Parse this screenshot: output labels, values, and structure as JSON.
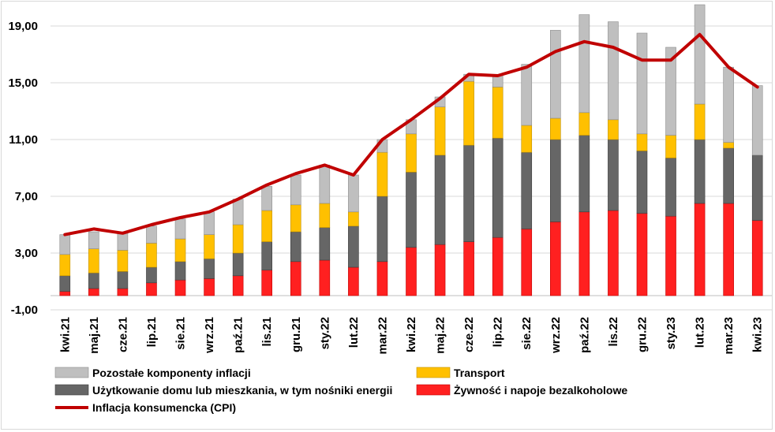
{
  "chart_data": {
    "type": "bar",
    "stacked": true,
    "ylim": [
      -1,
      19
    ],
    "yticks": [
      "-1,00",
      "3,00",
      "7,00",
      "11,00",
      "15,00",
      "19,00"
    ],
    "ytick_values": [
      -1,
      3,
      7,
      11,
      15,
      19
    ],
    "gridlines": true,
    "legend_position": "bottom",
    "categories": [
      "kwi.21",
      "maj.21",
      "cze.21",
      "lip.21",
      "sie.21",
      "wrz.21",
      "paź.21",
      "lis.21",
      "gru.21",
      "sty.22",
      "lut.22",
      "mar.22",
      "kwi.22",
      "maj.22",
      "cze.22",
      "lip.22",
      "sie.22",
      "wrz.22",
      "paź.22",
      "lis.22",
      "gru.22",
      "sty.23",
      "lut.23",
      "mar.23",
      "kwi.23"
    ],
    "series": [
      {
        "name": "Żywność i napoje bezalkoholowe",
        "color": "#ff2020",
        "border": "#c00000",
        "values": [
          0.3,
          0.5,
          0.5,
          0.9,
          1.1,
          1.2,
          1.4,
          1.8,
          2.4,
          2.5,
          2.0,
          2.4,
          3.4,
          3.6,
          3.8,
          4.1,
          4.7,
          5.2,
          5.9,
          6.0,
          5.8,
          5.6,
          6.5,
          6.5,
          5.3
        ]
      },
      {
        "name": "Użytkowanie domu lub mieszkania, w tym nośniki energii",
        "color": "#666666",
        "border": "#3c3c3c",
        "values": [
          1.1,
          1.1,
          1.2,
          1.1,
          1.3,
          1.4,
          1.6,
          2.0,
          2.1,
          2.3,
          2.9,
          4.6,
          5.3,
          6.3,
          6.8,
          7.0,
          5.4,
          5.8,
          5.4,
          5.0,
          4.4,
          4.1,
          4.5,
          3.9,
          4.6
        ]
      },
      {
        "name": "Transport",
        "color": "#ffc000",
        "border": "#bf9000",
        "values": [
          1.5,
          1.7,
          1.5,
          1.7,
          1.6,
          1.7,
          2.0,
          2.2,
          1.9,
          1.7,
          1.0,
          3.1,
          2.7,
          3.4,
          4.5,
          3.6,
          1.9,
          1.5,
          1.6,
          1.4,
          1.2,
          1.6,
          2.5,
          0.4,
          0.0
        ]
      },
      {
        "name": "Pozostałe komponenty inflacji",
        "color": "#bfbfbf",
        "border": "#8c8c8c",
        "values": [
          1.4,
          1.2,
          1.2,
          1.2,
          1.4,
          1.6,
          1.8,
          1.7,
          2.1,
          2.7,
          2.6,
          0.9,
          1.0,
          0.7,
          0.5,
          0.8,
          4.3,
          6.2,
          6.9,
          6.9,
          7.1,
          6.2,
          7.0,
          5.3,
          4.9
        ]
      }
    ],
    "line": {
      "name": "Inflacja konsumencka (CPI)",
      "color": "#c00000",
      "values": [
        4.3,
        4.7,
        4.4,
        5.0,
        5.5,
        5.9,
        6.8,
        7.8,
        8.6,
        9.2,
        8.5,
        11.0,
        12.4,
        13.9,
        15.6,
        15.5,
        16.1,
        17.2,
        17.9,
        17.5,
        16.6,
        16.6,
        18.4,
        16.1,
        14.7
      ]
    }
  }
}
